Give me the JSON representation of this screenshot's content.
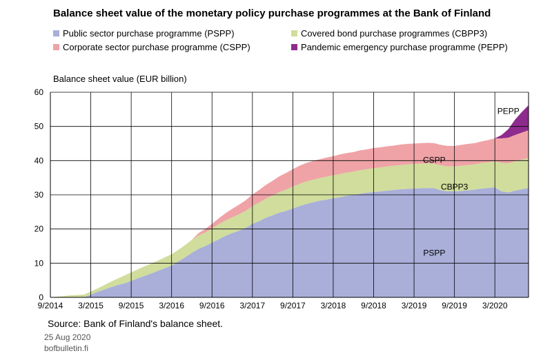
{
  "chart_data": {
    "type": "area",
    "stacked": true,
    "title": "Balance sheet value of the monetary policy purchase programmes at the Bank of Finland",
    "ylabel": "Balance sheet value (EUR billion)",
    "ylim": [
      0,
      60
    ],
    "yticks": [
      0,
      10,
      20,
      30,
      40,
      50,
      60
    ],
    "xticks": [
      "9/2014",
      "3/2015",
      "9/2015",
      "3/2016",
      "9/2016",
      "3/2017",
      "9/2017",
      "3/2018",
      "9/2018",
      "3/2019",
      "9/2019",
      "3/2020"
    ],
    "grid": true,
    "legend_position": "top",
    "x": [
      "2014-09",
      "2014-10",
      "2014-11",
      "2014-12",
      "2015-01",
      "2015-02",
      "2015-03",
      "2015-04",
      "2015-05",
      "2015-06",
      "2015-07",
      "2015-08",
      "2015-09",
      "2015-10",
      "2015-11",
      "2015-12",
      "2016-01",
      "2016-02",
      "2016-03",
      "2016-04",
      "2016-05",
      "2016-06",
      "2016-07",
      "2016-08",
      "2016-09",
      "2016-10",
      "2016-11",
      "2016-12",
      "2017-01",
      "2017-02",
      "2017-03",
      "2017-04",
      "2017-05",
      "2017-06",
      "2017-07",
      "2017-08",
      "2017-09",
      "2017-10",
      "2017-11",
      "2017-12",
      "2018-01",
      "2018-02",
      "2018-03",
      "2018-04",
      "2018-05",
      "2018-06",
      "2018-07",
      "2018-08",
      "2018-09",
      "2018-10",
      "2018-11",
      "2018-12",
      "2019-01",
      "2019-02",
      "2019-03",
      "2019-04",
      "2019-05",
      "2019-06",
      "2019-07",
      "2019-08",
      "2019-09",
      "2019-10",
      "2019-11",
      "2019-12",
      "2020-01",
      "2020-02",
      "2020-03",
      "2020-04",
      "2020-05",
      "2020-06",
      "2020-07",
      "2020-08"
    ],
    "series": [
      {
        "name": "Public sector purchase programme (PSPP)",
        "label": "PSPP",
        "color": "#a9afd9",
        "values": [
          0,
          0,
          0,
          0,
          0,
          0,
          0.8,
          1.6,
          2.3,
          3.0,
          3.6,
          4.1,
          4.8,
          5.6,
          6.3,
          7.0,
          7.8,
          8.5,
          9.3,
          10.5,
          11.7,
          13.0,
          14.2,
          15.0,
          16.0,
          17.0,
          18.0,
          18.8,
          19.5,
          20.3,
          21.5,
          22.3,
          23.3,
          24.0,
          24.8,
          25.3,
          26.0,
          26.7,
          27.3,
          27.8,
          28.3,
          28.6,
          29.0,
          29.3,
          29.7,
          30.0,
          30.3,
          30.6,
          30.8,
          31.0,
          31.2,
          31.4,
          31.6,
          31.7,
          31.8,
          31.9,
          32.0,
          31.9,
          31.3,
          31.0,
          31.0,
          31.1,
          31.3,
          31.5,
          31.8,
          32.0,
          32.2,
          31.0,
          30.7,
          31.2,
          31.6,
          32.0
        ]
      },
      {
        "name": "Covered bond purchase programmes (CBPP3)",
        "label": "CBPP3",
        "color": "#d0dd9c",
        "values": [
          0,
          0.2,
          0.4,
          0.6,
          0.7,
          0.8,
          0.9,
          1.0,
          1.3,
          1.6,
          1.9,
          2.3,
          2.5,
          2.6,
          2.8,
          2.9,
          3.0,
          3.2,
          3.3,
          3.4,
          3.6,
          3.8,
          3.9,
          4.0,
          4.2,
          4.4,
          4.5,
          4.6,
          4.8,
          5.0,
          5.2,
          5.4,
          5.6,
          5.8,
          6.0,
          6.2,
          6.4,
          6.5,
          6.6,
          6.6,
          6.6,
          6.7,
          6.7,
          6.8,
          6.8,
          6.8,
          6.9,
          6.9,
          7.0,
          7.0,
          7.1,
          7.1,
          7.1,
          7.2,
          7.2,
          7.2,
          7.2,
          7.2,
          7.3,
          7.3,
          7.3,
          7.4,
          7.4,
          7.4,
          7.5,
          7.5,
          7.6,
          8.3,
          8.5,
          8.6,
          8.7,
          8.8
        ]
      },
      {
        "name": "Corporate sector purchase programme (CSPP)",
        "label": "CSPP",
        "color": "#efa3a7",
        "values": [
          0,
          0,
          0,
          0,
          0,
          0,
          0,
          0,
          0,
          0,
          0,
          0,
          0,
          0,
          0,
          0,
          0,
          0,
          0,
          0,
          0,
          0,
          0.7,
          1.0,
          1.3,
          1.7,
          2.1,
          2.5,
          2.8,
          3.1,
          3.4,
          3.7,
          4.0,
          4.3,
          4.6,
          4.9,
          5.1,
          5.3,
          5.4,
          5.5,
          5.5,
          5.6,
          5.6,
          5.7,
          5.7,
          5.7,
          5.8,
          5.8,
          5.9,
          5.9,
          5.9,
          5.9,
          6.0,
          6.0,
          6.0,
          6.0,
          6.0,
          6.0,
          6.0,
          6.0,
          6.0,
          6.1,
          6.2,
          6.2,
          6.3,
          6.5,
          6.7,
          7.2,
          7.5,
          7.7,
          7.9,
          8.1
        ]
      },
      {
        "name": "Pandemic emergency purchase programme (PEPP)",
        "label": "PEPP",
        "color": "#8e2c8d",
        "values": [
          0,
          0,
          0,
          0,
          0,
          0,
          0,
          0,
          0,
          0,
          0,
          0,
          0,
          0,
          0,
          0,
          0,
          0,
          0,
          0,
          0,
          0,
          0,
          0,
          0,
          0,
          0,
          0,
          0,
          0,
          0,
          0,
          0,
          0,
          0,
          0,
          0,
          0,
          0,
          0,
          0,
          0,
          0,
          0,
          0,
          0,
          0,
          0,
          0,
          0,
          0,
          0,
          0,
          0,
          0,
          0,
          0,
          0,
          0,
          0,
          0,
          0,
          0,
          0,
          0,
          0,
          0,
          1.0,
          2.5,
          4.5,
          6.0,
          7.3
        ]
      }
    ]
  },
  "source": "Source: Bank of Finland's balance sheet.",
  "date": "25 Aug 2020",
  "site": "bofbulletin.fi"
}
